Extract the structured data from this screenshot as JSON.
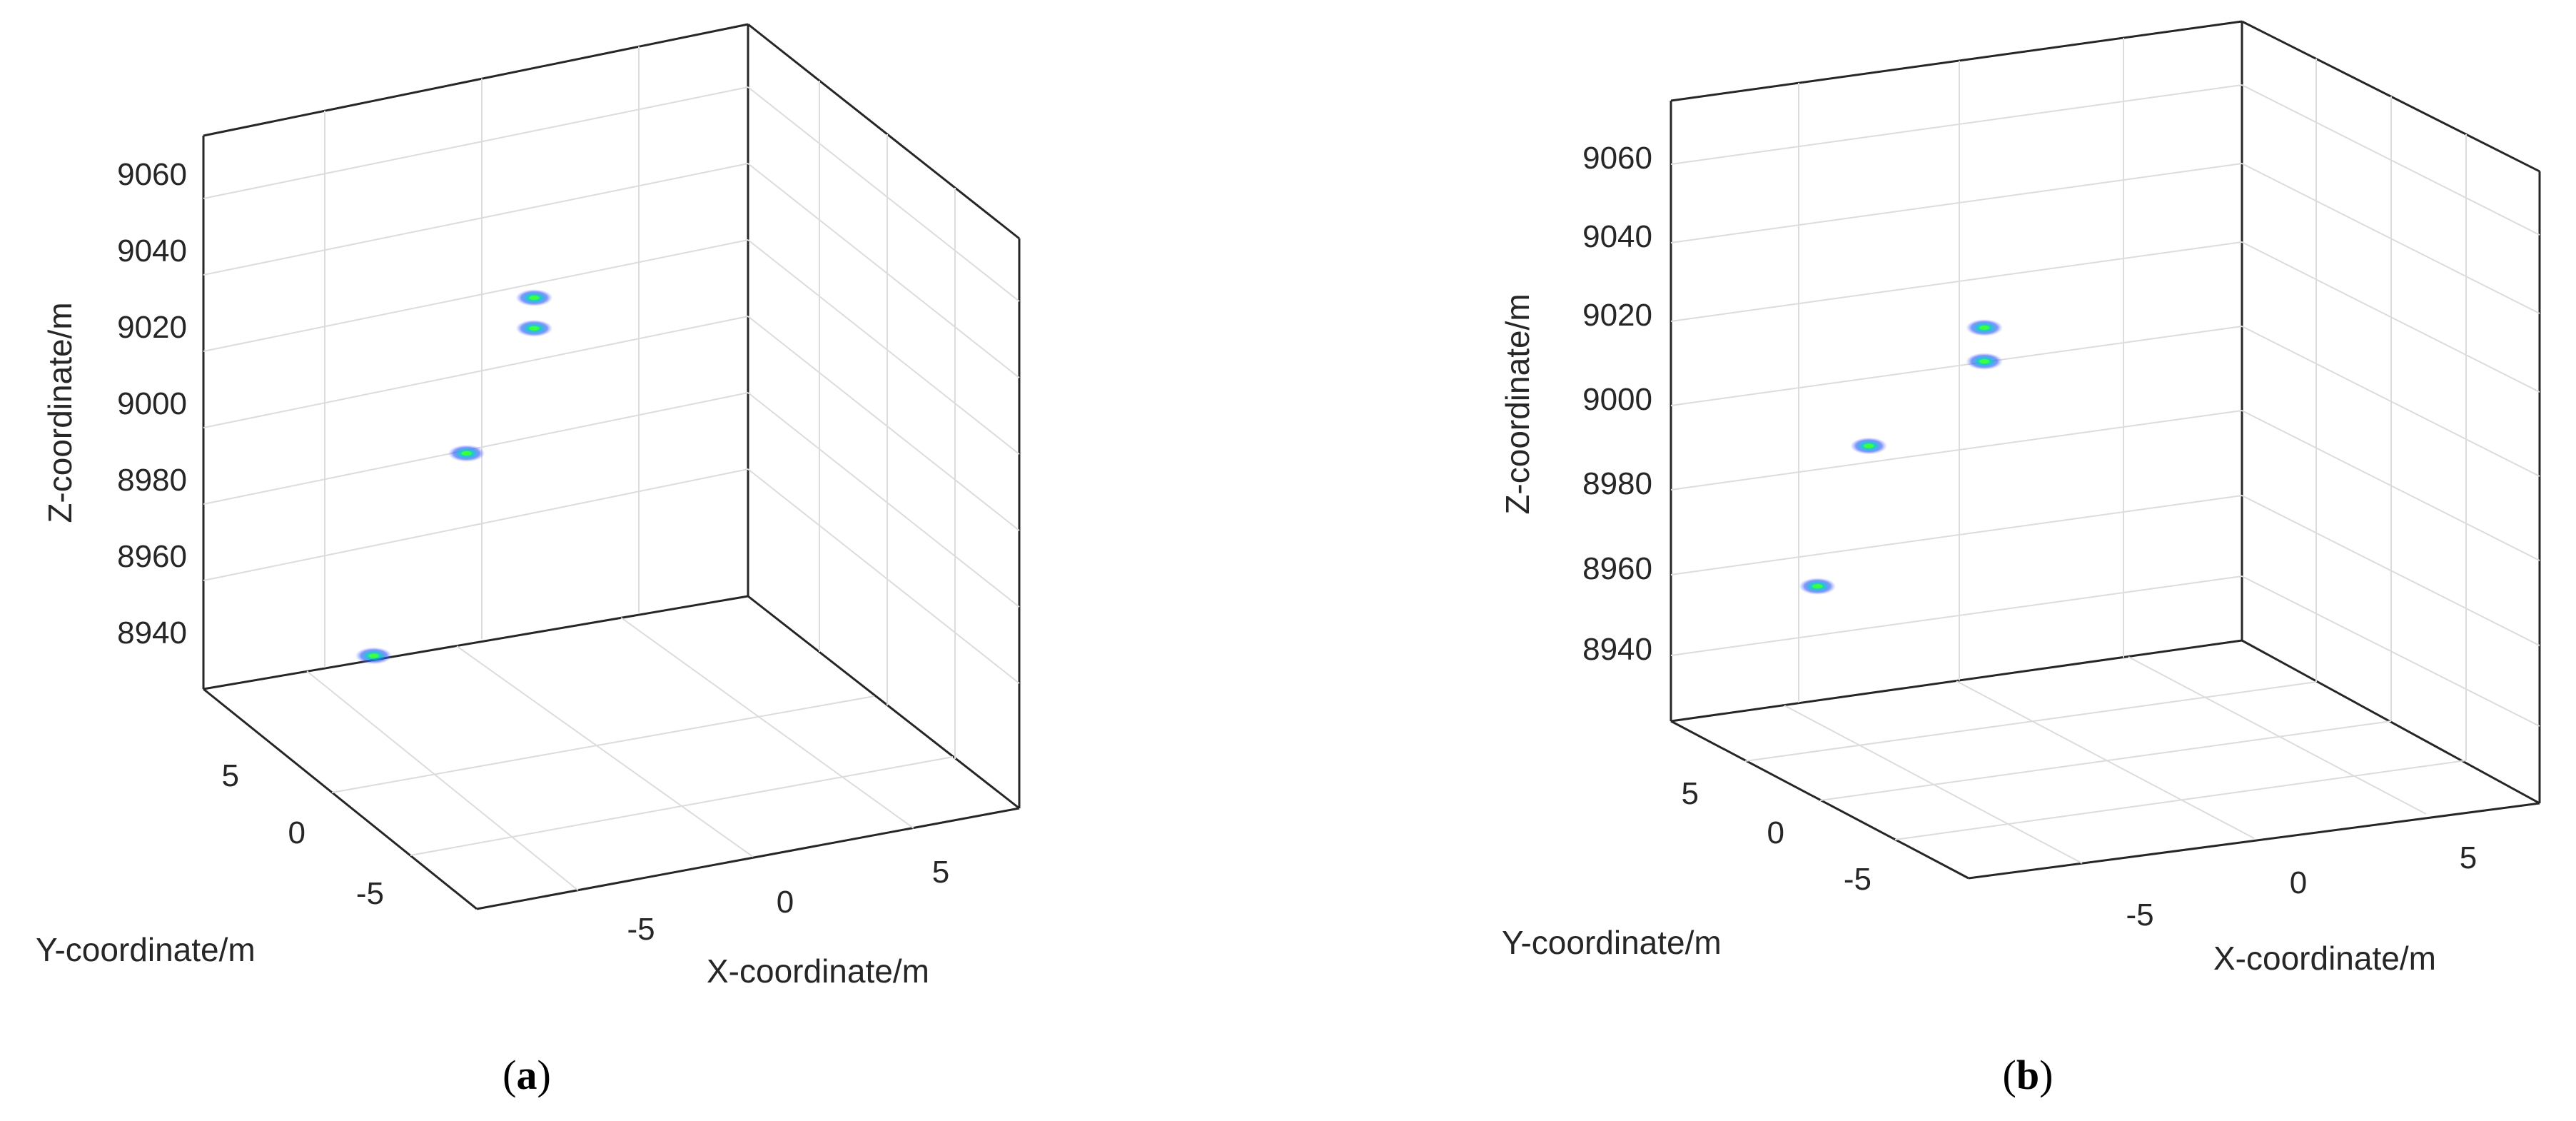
{
  "chart_data": [
    {
      "type": "scatter",
      "panel": "a",
      "caption_open": "(",
      "caption_letter": "a",
      "caption_close": ")",
      "xlabel": "X-coordinate/m",
      "ylabel": "Y-coordinate/m",
      "zlabel": "Z-coordinate/m",
      "x_ticks": [
        "-5",
        "0",
        "5"
      ],
      "y_ticks": [
        "5",
        "0",
        "-5"
      ],
      "z_ticks": [
        "9060",
        "9040",
        "9020",
        "9000",
        "8980",
        "8960",
        "8940"
      ],
      "xlim": [
        -8,
        8
      ],
      "ylim": [
        -8,
        8
      ],
      "zlim": [
        8928,
        9072
      ],
      "grid": true,
      "points": [
        {
          "x": -6,
          "y": 2,
          "z": 8955
        },
        {
          "x": -1.5,
          "y": 5.5,
          "z": 8988
        },
        {
          "x": 1,
          "y": 6.5,
          "z": 9021
        },
        {
          "x": 1,
          "y": 6.5,
          "z": 9013
        }
      ],
      "colormap": [
        "#3050ff",
        "#00c8c8",
        "#40ff40"
      ]
    },
    {
      "type": "scatter",
      "panel": "b",
      "caption_open": "(",
      "caption_letter": "b",
      "caption_close": ")",
      "xlabel": "X-coordinate/m",
      "ylabel": "Y-coordinate/m",
      "zlabel": "Z-coordinate/m",
      "x_ticks": [
        "-5",
        "0",
        "5"
      ],
      "y_ticks": [
        "5",
        "0",
        "-5"
      ],
      "z_ticks": [
        "9060",
        "9040",
        "9020",
        "9000",
        "8980",
        "8960",
        "8940"
      ],
      "xlim": [
        -8,
        8
      ],
      "ylim": [
        -8,
        8
      ],
      "zlim": [
        8928,
        9072
      ],
      "grid": true,
      "points": [
        {
          "x": -6.5,
          "y": 3,
          "z": 8970
        },
        {
          "x": -3.5,
          "y": 6,
          "z": 8993
        },
        {
          "x": 0,
          "y": 6.5,
          "z": 9016
        },
        {
          "x": 0,
          "y": 6.5,
          "z": 9008
        }
      ],
      "colormap": [
        "#3050ff",
        "#00c8c8",
        "#40ff40"
      ]
    }
  ]
}
